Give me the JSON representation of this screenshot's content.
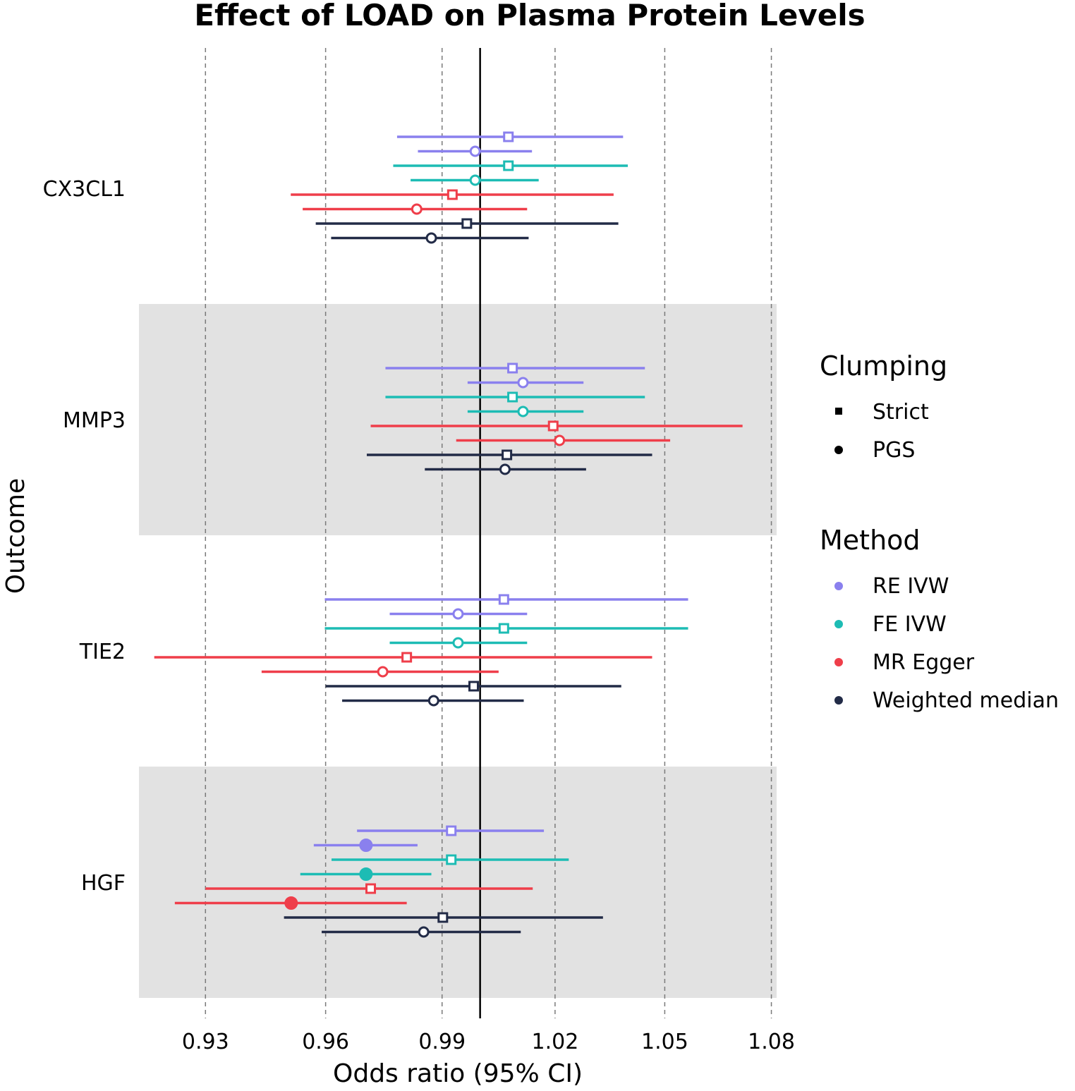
{
  "chart_data": {
    "type": "forest",
    "title": "Effect of LOAD on Plasma Protein Levels",
    "xlabel": "Odds ratio (95% CI)",
    "ylabel": "Outcome",
    "x_scale": "log",
    "x_ticks": [
      0.93,
      0.96,
      0.99,
      1.02,
      1.05,
      1.08
    ],
    "x_tick_labels": [
      "0.93",
      "0.96",
      "0.99",
      "1.02",
      "1.05",
      "1.08"
    ],
    "xlim": [
      0.9138,
      1.0815
    ],
    "reference_line": 1.0,
    "grid": "vertical dashed",
    "legend_position": "right",
    "legend": {
      "clumping_title": "Clumping",
      "clumping": [
        {
          "key": "strict",
          "label": "Strict"
        },
        {
          "key": "pgs",
          "label": "PGS"
        }
      ],
      "method_title": "Method",
      "methods": [
        {
          "key": "re_ivw",
          "label": "RE IVW",
          "color": "#8a80ee"
        },
        {
          "key": "fe_ivw",
          "label": "FE IVW",
          "color": "#1dbcb4"
        },
        {
          "key": "mr_egger",
          "label": "MR Egger",
          "color": "#ef3e4a"
        },
        {
          "key": "weighted_median",
          "label": "Weighted median",
          "color": "#222b47"
        }
      ]
    },
    "outcomes": [
      {
        "name": "CX3CL1",
        "shaded": false,
        "rows": [
          {
            "method": "re_ivw",
            "clumping": "strict",
            "or": 1.0075,
            "lo": 0.9783,
            "hi": 1.0385,
            "filled": false
          },
          {
            "method": "re_ivw",
            "clumping": "pgs",
            "or": 0.9987,
            "lo": 0.9837,
            "hi": 1.0138,
            "filled": false
          },
          {
            "method": "fe_ivw",
            "clumping": "strict",
            "or": 1.0075,
            "lo": 0.9773,
            "hi": 1.0398,
            "filled": false
          },
          {
            "method": "fe_ivw",
            "clumping": "pgs",
            "or": 0.9987,
            "lo": 0.9818,
            "hi": 1.0156,
            "filled": false
          },
          {
            "method": "mr_egger",
            "clumping": "strict",
            "or": 0.9927,
            "lo": 0.9512,
            "hi": 1.0359,
            "filled": false
          },
          {
            "method": "mr_egger",
            "clumping": "pgs",
            "or": 0.9834,
            "lo": 0.9542,
            "hi": 1.0125,
            "filled": false
          },
          {
            "method": "weighted_median",
            "clumping": "strict",
            "or": 0.9965,
            "lo": 0.9575,
            "hi": 1.0372,
            "filled": false
          },
          {
            "method": "weighted_median",
            "clumping": "pgs",
            "or": 0.9872,
            "lo": 0.9614,
            "hi": 1.0129,
            "filled": false
          }
        ]
      },
      {
        "name": "MMP3",
        "shaded": true,
        "rows": [
          {
            "method": "re_ivw",
            "clumping": "strict",
            "or": 1.0086,
            "lo": 0.9753,
            "hi": 1.0445,
            "filled": false
          },
          {
            "method": "re_ivw",
            "clumping": "pgs",
            "or": 1.0114,
            "lo": 0.9967,
            "hi": 1.0277,
            "filled": false
          },
          {
            "method": "fe_ivw",
            "clumping": "strict",
            "or": 1.0086,
            "lo": 0.9753,
            "hi": 1.0445,
            "filled": false
          },
          {
            "method": "fe_ivw",
            "clumping": "pgs",
            "or": 1.0114,
            "lo": 0.9967,
            "hi": 1.0277,
            "filled": false
          },
          {
            "method": "mr_egger",
            "clumping": "strict",
            "or": 1.0195,
            "lo": 0.9715,
            "hi": 1.0718,
            "filled": false
          },
          {
            "method": "mr_egger",
            "clumping": "pgs",
            "or": 1.0212,
            "lo": 0.9937,
            "hi": 1.0515,
            "filled": false
          },
          {
            "method": "weighted_median",
            "clumping": "strict",
            "or": 1.0071,
            "lo": 0.9705,
            "hi": 1.0465,
            "filled": false
          },
          {
            "method": "weighted_median",
            "clumping": "pgs",
            "or": 1.0066,
            "lo": 0.9855,
            "hi": 1.0284,
            "filled": false
          }
        ]
      },
      {
        "name": "TIE2",
        "shaded": false,
        "rows": [
          {
            "method": "re_ivw",
            "clumping": "strict",
            "or": 1.0063,
            "lo": 0.9598,
            "hi": 1.0565,
            "filled": false
          },
          {
            "method": "re_ivw",
            "clumping": "pgs",
            "or": 0.9942,
            "lo": 0.9764,
            "hi": 1.0125,
            "filled": false
          },
          {
            "method": "fe_ivw",
            "clumping": "strict",
            "or": 1.0063,
            "lo": 0.9598,
            "hi": 1.0565,
            "filled": false
          },
          {
            "method": "fe_ivw",
            "clumping": "pgs",
            "or": 0.9942,
            "lo": 0.9764,
            "hi": 1.0125,
            "filled": false
          },
          {
            "method": "mr_egger",
            "clumping": "strict",
            "or": 0.9808,
            "lo": 0.9175,
            "hi": 1.0465,
            "filled": false
          },
          {
            "method": "mr_egger",
            "clumping": "pgs",
            "or": 0.9746,
            "lo": 0.9439,
            "hi": 1.0049,
            "filled": false
          },
          {
            "method": "weighted_median",
            "clumping": "strict",
            "or": 0.9983,
            "lo": 0.96,
            "hi": 1.038,
            "filled": false
          },
          {
            "method": "weighted_median",
            "clumping": "pgs",
            "or": 0.9878,
            "lo": 0.9642,
            "hi": 1.0116,
            "filled": false
          }
        ]
      },
      {
        "name": "HGF",
        "shaded": true,
        "rows": [
          {
            "method": "re_ivw",
            "clumping": "strict",
            "or": 0.9924,
            "lo": 0.968,
            "hi": 1.017,
            "filled": false
          },
          {
            "method": "re_ivw",
            "clumping": "pgs",
            "or": 0.9703,
            "lo": 0.957,
            "hi": 0.9836,
            "filled": true
          },
          {
            "method": "fe_ivw",
            "clumping": "strict",
            "or": 0.9924,
            "lo": 0.9615,
            "hi": 1.0237,
            "filled": false
          },
          {
            "method": "fe_ivw",
            "clumping": "pgs",
            "or": 0.9703,
            "lo": 0.9536,
            "hi": 0.9872,
            "filled": true
          },
          {
            "method": "mr_egger",
            "clumping": "strict",
            "or": 0.9715,
            "lo": 0.93,
            "hi": 1.014,
            "filled": false
          },
          {
            "method": "mr_egger",
            "clumping": "pgs",
            "or": 0.9513,
            "lo": 0.9225,
            "hi": 0.9808,
            "filled": true
          },
          {
            "method": "weighted_median",
            "clumping": "strict",
            "or": 0.9902,
            "lo": 0.9495,
            "hi": 1.033,
            "filled": false
          },
          {
            "method": "weighted_median",
            "clumping": "pgs",
            "or": 0.9852,
            "lo": 0.959,
            "hi": 1.0108,
            "filled": false
          }
        ]
      }
    ]
  }
}
